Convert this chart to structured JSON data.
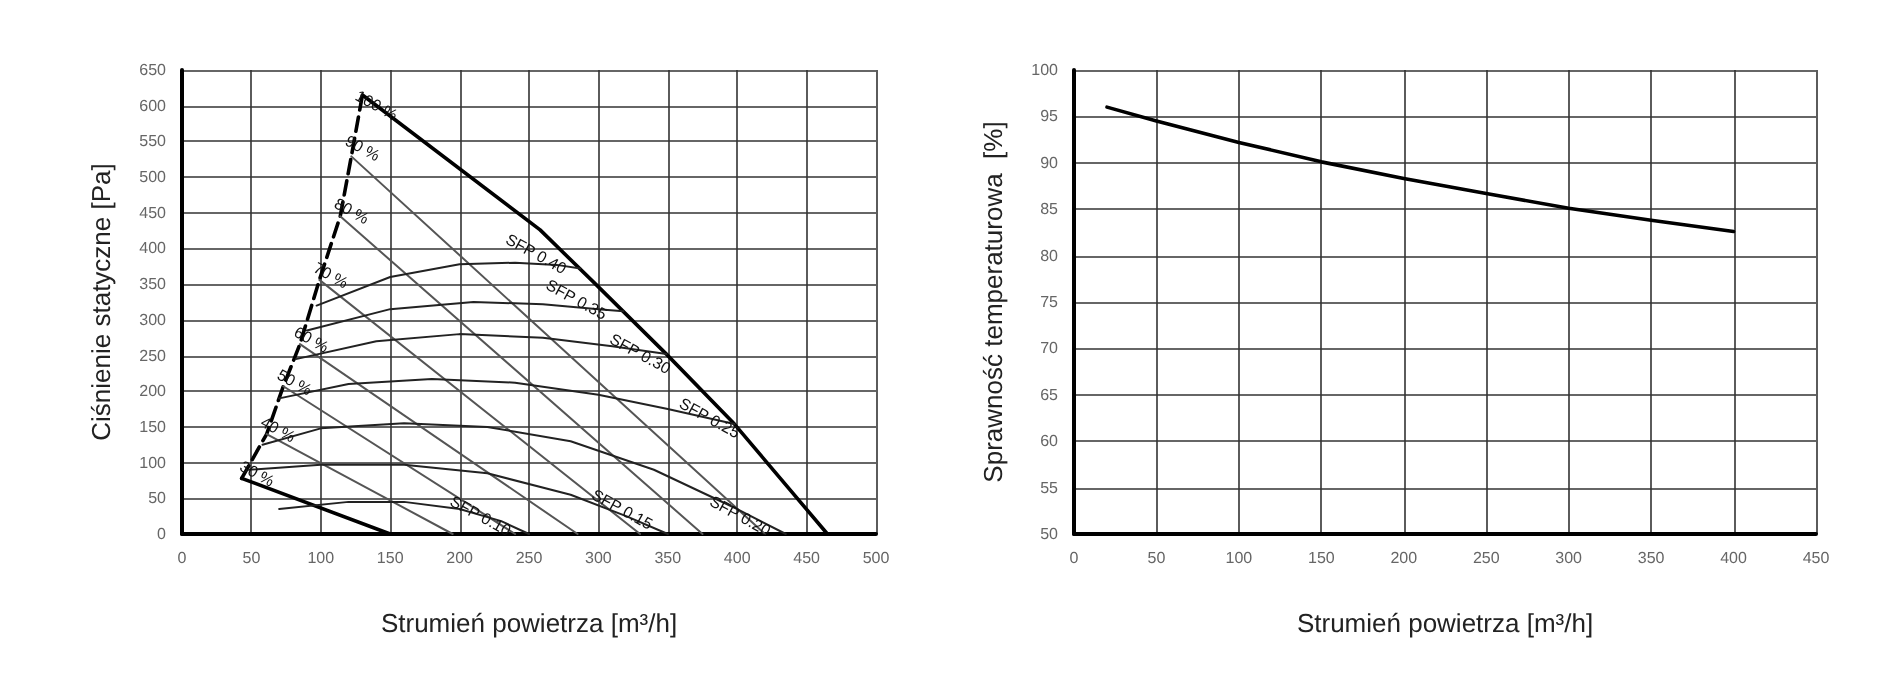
{
  "chart_data": [
    {
      "type": "line",
      "xlabel": "Strumień powietrza [m³/h]",
      "ylabel": "Ciśnienie statyczne [Pa]",
      "xlim": [
        0,
        500
      ],
      "xticks": [
        0,
        50,
        100,
        150,
        200,
        250,
        300,
        350,
        400,
        450,
        500
      ],
      "ylim": [
        0,
        650
      ],
      "yticks": [
        0,
        50,
        100,
        150,
        200,
        250,
        300,
        350,
        400,
        450,
        500,
        550,
        600,
        650
      ],
      "grid": true,
      "marker": "none",
      "series": [
        {
          "color": "#000000",
          "x": [
            130,
            258,
            298,
            349,
            398,
            465
          ],
          "values": [
            615,
            426,
            350,
            252,
            154,
            0
          ]
        },
        {
          "color": "#000000",
          "x": [
            43,
            150
          ],
          "values": [
            78,
            0
          ]
        },
        {
          "color": "#000000",
          "line_style": "dashed",
          "x": [
            43,
            61,
            73,
            85,
            99,
            114,
            122,
            130
          ],
          "values": [
            78,
            140,
            207,
            266,
            356,
            445,
            529,
            615
          ]
        },
        {
          "color": "#555555",
          "x": [
            122,
            420
          ],
          "values": [
            529,
            0
          ]
        },
        {
          "color": "#555555",
          "x": [
            114,
            375
          ],
          "values": [
            445,
            0
          ]
        },
        {
          "color": "#555555",
          "x": [
            99,
            330
          ],
          "values": [
            356,
            0
          ]
        },
        {
          "color": "#555555",
          "x": [
            85,
            285
          ],
          "values": [
            266,
            0
          ]
        },
        {
          "color": "#555555",
          "x": [
            73,
            240
          ],
          "values": [
            207,
            0
          ]
        },
        {
          "color": "#555555",
          "x": [
            61,
            195
          ],
          "values": [
            140,
            0
          ]
        },
        {
          "color": "#222222",
          "x": [
            70,
            120,
            160,
            200,
            230,
            250
          ],
          "values": [
            35,
            45,
            45,
            35,
            18,
            0
          ]
        },
        {
          "color": "#222222",
          "x": [
            48,
            100,
            160,
            220,
            280,
            320,
            350
          ],
          "values": [
            90,
            97,
            97,
            85,
            55,
            25,
            0
          ]
        },
        {
          "color": "#222222",
          "x": [
            58,
            100,
            160,
            220,
            280,
            340,
            400,
            435
          ],
          "values": [
            125,
            148,
            155,
            150,
            130,
            90,
            35,
            0
          ]
        },
        {
          "color": "#222222",
          "x": [
            70,
            120,
            180,
            240,
            300,
            350,
            398
          ],
          "values": [
            190,
            210,
            217,
            212,
            195,
            175,
            154
          ]
        },
        {
          "color": "#222222",
          "x": [
            82,
            140,
            200,
            260,
            310,
            349
          ],
          "values": [
            245,
            270,
            280,
            275,
            263,
            252
          ]
        },
        {
          "color": "#222222",
          "x": [
            90,
            150,
            210,
            260,
            300,
            318
          ],
          "values": [
            285,
            315,
            325,
            322,
            315,
            312
          ]
        },
        {
          "color": "#222222",
          "x": [
            97,
            150,
            200,
            240,
            270,
            287
          ],
          "values": [
            320,
            360,
            378,
            380,
            377,
            372
          ]
        }
      ],
      "annotations": [
        {
          "text": "100 %",
          "x": 140,
          "y": 600
        },
        {
          "text": "90 %",
          "x": 130,
          "y": 540
        },
        {
          "text": "80 %",
          "x": 122,
          "y": 452
        },
        {
          "text": "70 %",
          "x": 107,
          "y": 362
        },
        {
          "text": "60 %",
          "x": 93,
          "y": 272
        },
        {
          "text": "50 %",
          "x": 81,
          "y": 212
        },
        {
          "text": "40 %",
          "x": 69,
          "y": 146
        },
        {
          "text": "30 %",
          "x": 54,
          "y": 84
        },
        {
          "text": "SFP 0.40",
          "x": 255,
          "y": 392
        },
        {
          "text": "SFP 0.35",
          "x": 284,
          "y": 328
        },
        {
          "text": "SFP 0.30",
          "x": 330,
          "y": 252
        },
        {
          "text": "SFP 0.25",
          "x": 380,
          "y": 162
        },
        {
          "text": "SFP 0.20",
          "x": 402,
          "y": 25
        },
        {
          "text": "SFP 0.15",
          "x": 317,
          "y": 34
        },
        {
          "text": "SFP 0.10",
          "x": 215,
          "y": 25
        }
      ]
    },
    {
      "type": "line",
      "xlabel": "Strumień powietrza [m³/h]",
      "ylabel": "Sprawność temperaturowa  [%]",
      "xlim": [
        0,
        450
      ],
      "xticks": [
        0,
        50,
        100,
        150,
        200,
        250,
        300,
        350,
        400,
        450
      ],
      "ylim": [
        50,
        100
      ],
      "yticks": [
        50,
        55,
        60,
        65,
        70,
        75,
        80,
        85,
        90,
        95,
        100
      ],
      "grid": true,
      "marker": "none",
      "series": [
        {
          "color": "#000000",
          "x": [
            20,
            50,
            100,
            150,
            200,
            250,
            300,
            350,
            400
          ],
          "values": [
            96,
            94.5,
            92.2,
            90.1,
            88.3,
            86.7,
            85.1,
            83.8,
            82.6
          ]
        }
      ]
    }
  ]
}
